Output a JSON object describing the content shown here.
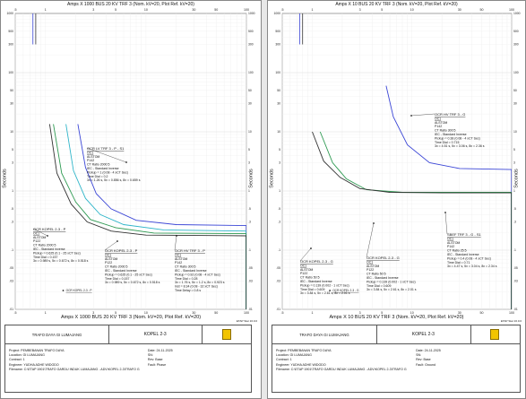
{
  "palette": {
    "blue": "#3b46d6",
    "green": "#2e9a52",
    "cyan": "#2fb5c9",
    "dark": "#333333",
    "grid": "#dcdcdc",
    "lightgrid": "#eeeeee"
  },
  "chart_data": [
    {
      "type": "line",
      "x_label_top": "Amps  X  1000   BUS 20 KV TRF 3 (Nom. kV=20, Plot Ref. kV=20)",
      "x_label_bottom": "Amps  X  1000   BUS 20 KV TRF 3 (Nom. kV=20, Plot Ref. kV=20)",
      "ylabel": "Seconds",
      "xlim": [
        0.5,
        100
      ],
      "ylim": [
        0.01,
        1000
      ],
      "x_scale": "log",
      "y_scale": "log",
      "x_ticks": [
        ".5",
        "1",
        "3",
        "5",
        "10",
        "30",
        "50",
        "100"
      ],
      "y_ticks": [
        "1000",
        "500",
        "300",
        "100",
        "50",
        "30",
        "10",
        "5",
        "3",
        "1",
        ".5",
        ".3",
        ".1",
        ".05",
        ".03",
        ".01"
      ],
      "corner_label": "ETAP Star 16.0.0",
      "series": [
        {
          "color": "blue",
          "points": [
            [
              2.1,
              13.5
            ],
            [
              2.5,
              2.5
            ],
            [
              3.2,
              0.9
            ],
            [
              4.5,
              0.5
            ],
            [
              8,
              0.32
            ],
            [
              20,
              0.27
            ],
            [
              100,
              0.26
            ]
          ]
        },
        {
          "color": "cyan",
          "points": [
            [
              1.6,
              13.5
            ],
            [
              1.9,
              2.2
            ],
            [
              2.5,
              0.75
            ],
            [
              3.5,
              0.4
            ],
            [
              6,
              0.27
            ],
            [
              15,
              0.22
            ],
            [
              100,
              0.21
            ]
          ]
        },
        {
          "color": "green",
          "points": [
            [
              1.2,
              13.5
            ],
            [
              1.45,
              2.0
            ],
            [
              2.0,
              0.65
            ],
            [
              2.8,
              0.33
            ],
            [
              5,
              0.24
            ],
            [
              12,
              0.195
            ],
            [
              100,
              0.19
            ]
          ]
        },
        {
          "color": "dark",
          "points": [
            [
              1.1,
              13.5
            ],
            [
              1.3,
              2.0
            ],
            [
              1.8,
              0.6
            ],
            [
              2.6,
              0.3
            ],
            [
              4.5,
              0.21
            ],
            [
              10,
              0.18
            ],
            [
              100,
              0.175
            ]
          ]
        }
      ],
      "annotations": [
        {
          "id": "lv",
          "lines": [
            "OCR LV TRF 3 - P - S1",
            "OC1",
            "ALSTOM",
            "P142",
            "CT Ratio 2000:5",
            "IEC - Standard Inverse",
            "Pickup = 1 (0.08 - 4 xCT Sec)",
            "Time Dial = 0.2",
            "3x = 1.26 s, 5x = 0.856 s, 8x = 0.659 s"
          ]
        },
        {
          "id": "kopel_p",
          "lines": [
            "OCR KOPEL 2-3 - P",
            "OC1",
            "ALSTOM",
            "P122",
            "CT Ratio 2000:5",
            "IEC - Standard Inverse",
            "Pickup = 0.625 (0.1 - 25  xCT Sec)",
            "Time Dial = 0.157",
            "3x = 0.989 s, 5x = 0.672 s, 8x = 0.518 s"
          ]
        },
        {
          "id": "kopel_p2",
          "lines": [
            "OCR KOPEL 2-3 - P",
            "OC1",
            "ALSTOM",
            "P122",
            "CT Ratio 2000:5",
            "IEC - Standard Inverse",
            "Pickup = 0.625 (0.1 - 25  xCT Sec)",
            "Time Dial = 0.157",
            "3x = 0.989 s, 5x = 0.672 s, 8x = 0.518 s"
          ]
        },
        {
          "id": "hv_p",
          "lines": [
            "OCR HV TRF 3 - P",
            "OC1",
            "ALSTOM",
            "P142",
            "CT Ratio 300:5",
            "IEC - Standard Inverse",
            "Pickup = 0.92 (0.08 - 4 xCT Sec)",
            "Time Dial = 0.28",
            "3x = 1.76 s, 5x = 1.2 s, 8x = 0.923 s",
            "Inst = 8.34 (0.08 - 32  xCT Sec)",
            "Time Delay = 0.8 s"
          ]
        }
      ],
      "small_tag": "OCR KOPEL 2-3 - P"
    },
    {
      "type": "line",
      "x_label_top": "Amps  X  10   BUS 20 KV TRF 3 (Nom. kV=20, Plot Ref. kV=20)",
      "x_label_bottom": "Amps  X  10   BUS 20 KV TRF 3 (Nom. kV=20, Plot Ref. kV=20)",
      "ylabel": "Seconds",
      "xlim": [
        0.5,
        100
      ],
      "ylim": [
        0.01,
        1000
      ],
      "x_scale": "log",
      "y_scale": "log",
      "x_ticks": [
        ".5",
        "1",
        "3",
        "5",
        "10",
        "30",
        "50",
        "100"
      ],
      "y_ticks": [
        "1000",
        "500",
        "300",
        "100",
        "50",
        "30",
        "10",
        "5",
        "3",
        "1",
        ".5",
        ".3",
        ".1",
        ".05",
        ".03",
        ".01"
      ],
      "corner_label": "ETAP Star 16.0.0",
      "series": [
        {
          "color": "blue",
          "points": [
            [
              5.5,
              60
            ],
            [
              6.5,
              18
            ],
            [
              9,
              6
            ],
            [
              15,
              3
            ],
            [
              30,
              2.4
            ],
            [
              100,
              2.3
            ]
          ]
        },
        {
          "color": "green",
          "points": [
            [
              1.2,
              10
            ],
            [
              1.6,
              3
            ],
            [
              2.2,
              1.6
            ],
            [
              3.5,
              1.05
            ],
            [
              8,
              0.95
            ],
            [
              100,
              0.95
            ]
          ]
        },
        {
          "color": "dark",
          "points": [
            [
              1.0,
              10
            ],
            [
              1.3,
              3.2
            ],
            [
              1.9,
              1.7
            ],
            [
              3,
              1.1
            ],
            [
              6,
              0.95
            ],
            [
              20,
              0.93
            ],
            [
              100,
              0.93
            ]
          ]
        }
      ],
      "annotations": [
        {
          "id": "hv_g",
          "lines": [
            "OCR HV TRF 3 - G",
            "OC1",
            "ALSTOM",
            "P142",
            "CT Ratio 300:5",
            "IEC - Standard Inverse",
            "Pickup = 0.38 (0.08 - 4 xCT Sec)",
            "Time Dial = 0.715",
            "3x = 4.51 s, 5x = 3.06 s, 8x = 2.36 s"
          ]
        },
        {
          "id": "kopel_g",
          "lines": [
            "OCR KOPEL 2-3 - G",
            "OC1",
            "ALSTOM",
            "P122",
            "CT Ratio 50:5",
            "IEC - Standard Inverse",
            "Pickup = 0.139 (0.002 - 1  xCT Sec)",
            "Time Dial = 0.609",
            "3x = 3.84 s, 5x = 2.61 s, 8x = 2.01 s"
          ]
        },
        {
          "id": "kopel_g2",
          "lines": [
            "OCR KOPEL 2-3 - G",
            "OC1",
            "ALSTOM",
            "P122",
            "CT Ratio 50:5",
            "IEC - Standard Inverse",
            "Pickup = 0.139 (0.002 - 1  xCT Sec)",
            "Time Dial = 0.609",
            "3x = 3.84 s, 5x = 2.61 s, 8x = 2.01 s"
          ]
        },
        {
          "id": "sbef",
          "lines": [
            "SBEF TRF 3 - G - S1",
            "OC1",
            "ALSTOM",
            "P142",
            "CT Ratio 25:5",
            "IEC - Standard Inverse",
            "Pickup = 0.4 (0.08 - 4 xCT Sec)",
            "Time Dial = 0.71",
            "3x = 4.47 s, 5x = 3.04 s, 8x = 2.34 s"
          ]
        }
      ],
      "small_tag": "OCR KOPEL 2-3 - G"
    }
  ],
  "title_blocks": [
    {
      "name": "TRAFO DAYA GI LUMAJANG",
      "section": "KOPEL 2-3",
      "project": "Project:  PEMBEBANAN TRAFO DAYA",
      "location": "Location:  GI LUMAJANG",
      "contract": "Contract:  1",
      "engineer": "Engineer:  YUDHA ADHE WIDODO",
      "filename": "Filename:  C:\\ETAP 1901\\TRAFO GARDU INDUK LUMAJANG - ADV\\KOPEL 2-3\\TRAFO G",
      "date": "Date:  24-11-2025",
      "sn": "SN:",
      "rev": "Rev:  Base",
      "fault": "Fault:  Phase"
    },
    {
      "name": "TRAFO DAYA GI LUMAJANG",
      "section": "KOPEL 2-3",
      "project": "Project:  PEMBEBANAN TRAFO DAYA",
      "location": "Location:  GI LUMAJANG",
      "contract": "Contract:  1",
      "engineer": "Engineer:  YUDHA ADHE WIDODO",
      "filename": "Filename:  C:\\ETAP 1901\\TRAFO GARDU INDUK LUMAJANG - ADV\\KOPEL 2-3\\TRAFO G",
      "date": "Date:  24-11-2025",
      "sn": "SN:",
      "rev": "Rev:  Base",
      "fault": "Fault:  Ground"
    }
  ]
}
